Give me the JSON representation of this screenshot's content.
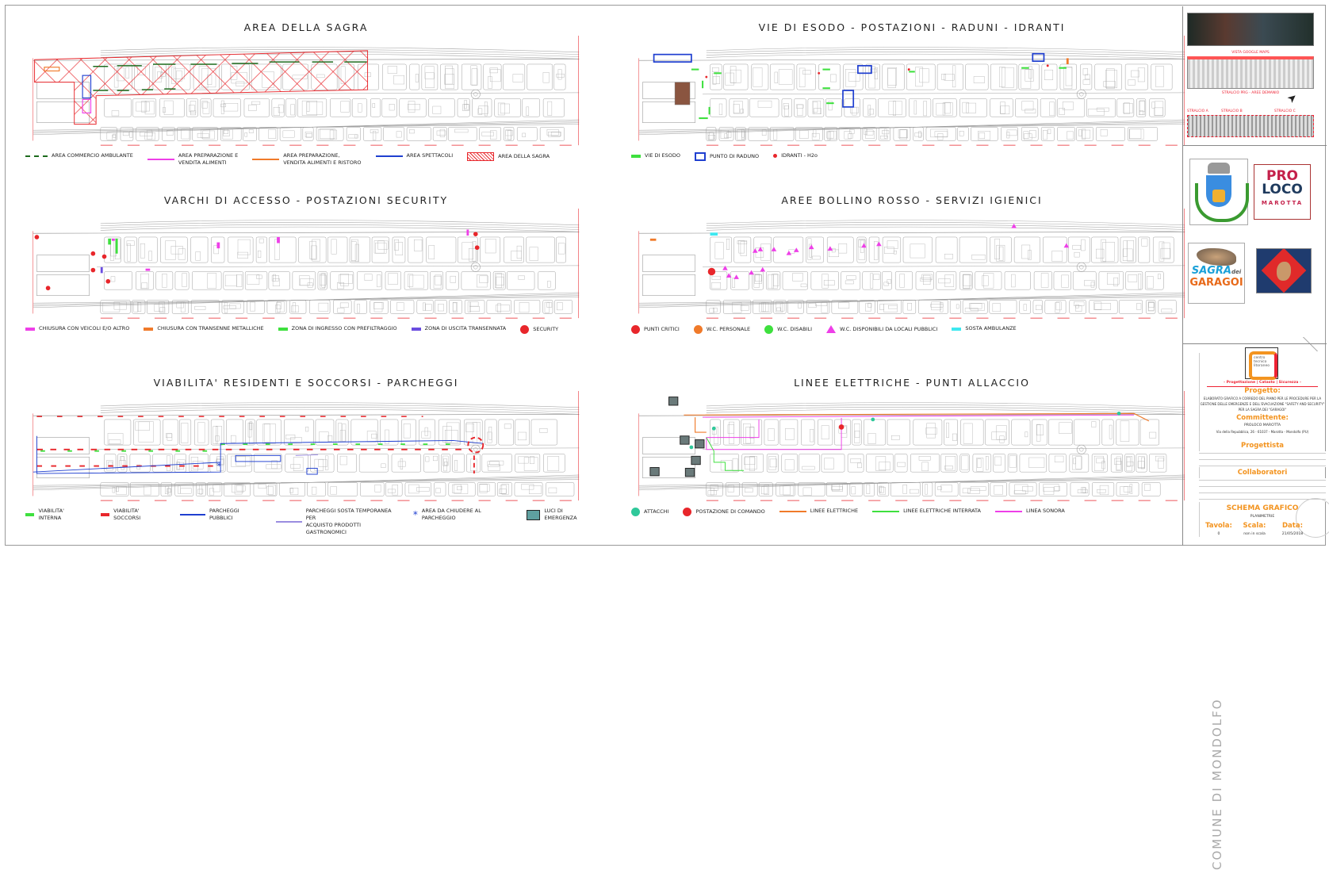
{
  "panels": [
    {
      "title": "AREA DELLA SAGRA",
      "legend": [
        "AREA COMMERCIO AMBULANTE",
        "AREA PREPARAZIONE E\nVENDITA ALIMENTI",
        "AREA PREPARAZIONE,\nVENDITA ALIMENTI E RISTORO",
        "AREA SPETTACOLI",
        "AREA DELLA SAGRA"
      ]
    },
    {
      "title": "VIE DI ESODO - POSTAZIONI - RADUNI - IDRANTI",
      "legend": [
        "VIE DI ESODO",
        "PUNTO DI RADUNO",
        "IDRANTI - H2o"
      ]
    },
    {
      "title": "VARCHI DI ACCESSO - POSTAZIONI SECURITY",
      "legend": [
        "CHIUSURA CON VEICOLI E/O ALTRO",
        "CHIUSURA CON TRANSENNE METALLICHE",
        "ZONA DI INGRESSO CON PREFILTRAGGIO",
        "ZONA DI USCITA TRANSENNATA",
        "SECURITY"
      ]
    },
    {
      "title": "AREE BOLLINO ROSSO - SERVIZI IGIENICI",
      "legend": [
        "PUNTI CRITICI",
        "W.C. PERSONALE",
        "W.C. DISABILI",
        "W.C. DISPONIBILI DA LOCALI PUBBLICI",
        "SOSTA AMBULANZE"
      ]
    },
    {
      "title": "VIABILITA' RESIDENTI E SOCCORSI - PARCHEGGI",
      "legend": [
        "VIABILITA' INTERNA",
        "VIABILITA' SOCCORSI",
        "PARCHEGGI PUBBLICI",
        "PARCHEGGI SOSTA TEMPORANEA PER\nACQUISTO PRODOTTI GASTRONOMICI",
        "AREA DA CHIUDERE AL PARCHEGGIO",
        "LUCI DI EMERGENZA"
      ]
    },
    {
      "title": "LINEE ELETTRICHE - PUNTI ALLACCIO",
      "legend": [
        "ATTACCHI",
        "POSTAZIONE DI COMANDO",
        "LINEE ELETTRICHE",
        "LINEE ELETTRICHE INTERRATA",
        "LINEA SONORA"
      ]
    }
  ],
  "colors": {
    "red": "#e8262b",
    "green_dark": "#1d6b1d",
    "green": "#3ee03e",
    "magenta": "#ee3fe8",
    "orange": "#f07a2a",
    "blue": "#1f3fd0",
    "purple": "#6a4de0",
    "cyan": "#3ee8f0",
    "teal": "#2fc89a",
    "title_orange": "#f39420"
  },
  "sidebar": {
    "captions": [
      "VISTA GOOGLE MAPS",
      "STRALCIO PRG - AREE DEMANIO",
      "STRALCIO A",
      "STRALCIO B",
      "STRALCIO C"
    ],
    "logos": {
      "proloco": "PRO LOCO MAROTTA",
      "sagra": "SAGRA dei GARAGOI",
      "studio": "centro tecnico litoraneo"
    },
    "comune": "COMUNE DI MONDOLFO",
    "title_block": {
      "tagline": "- Progettazione | Catasto | Sicurezza -",
      "progetto_label": "Progetto:",
      "progetto_text": "ELABORATO GRAFICO A CORREDO DEL PIANO PER LE PROCEDURE PER LA GESTIONE DELLE EMERGENZE E DELL'EVACUAZIONE \"SAFETY AND SECURITY\" PER LA SAGRA DEI \"GARAGOI\"",
      "committente_label": "Committente:",
      "committente_name": "PROLOCO MAROTTA",
      "committente_addr": "Via della Repubblica, 26 - 61037 - Marotta - Mondolfo (PU)",
      "progettista_label": "Progettista",
      "collaboratori_label": "Collaboratori",
      "schema_label": "SCHEMA GRAFICO",
      "schema_value": "PLANIMETRIE",
      "tavola_label": "Tavola:",
      "scala_label": "Scala:",
      "data_label": "Data:",
      "tavola_value": "0",
      "scala_value": "non in scala",
      "data_value": "21/05/2018"
    }
  }
}
